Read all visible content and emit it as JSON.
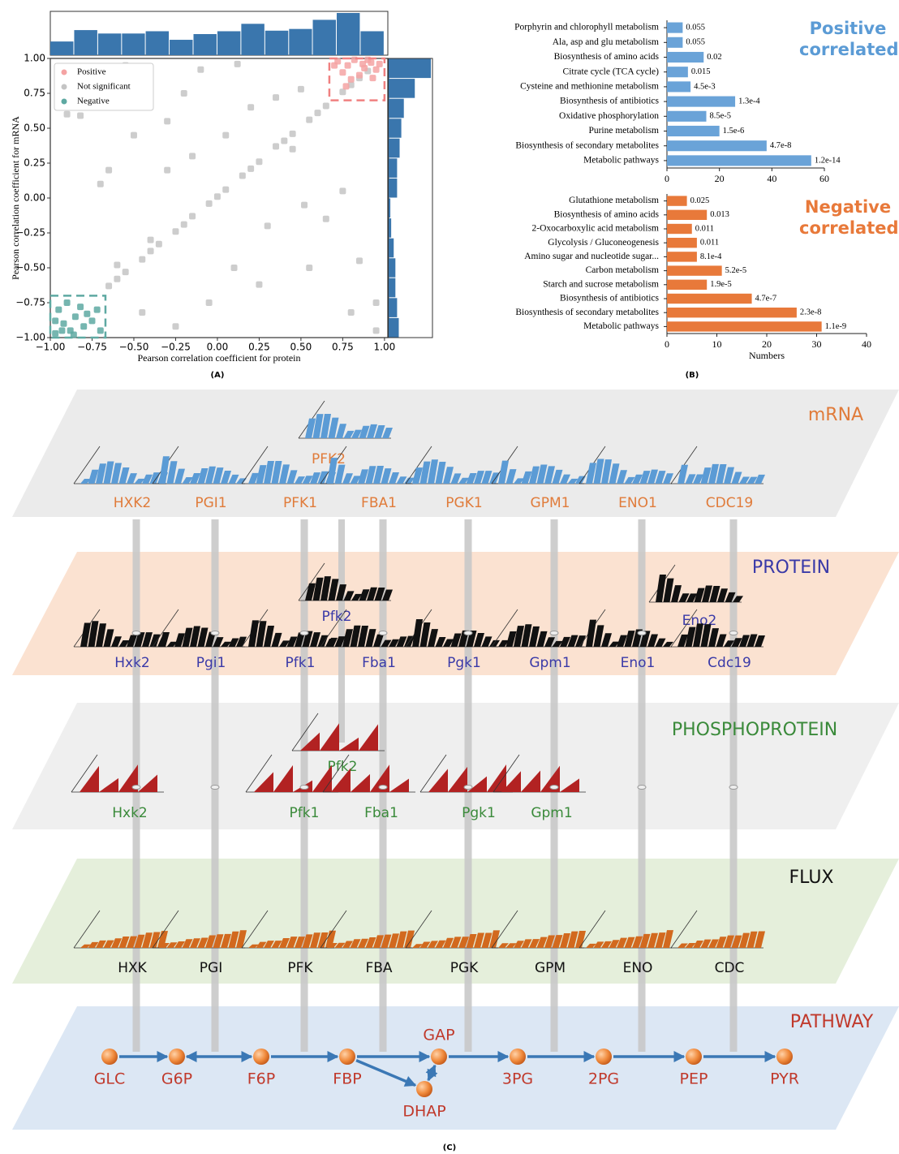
{
  "chart_data": [
    {
      "type": "scatter",
      "xlabel": "Pearson correlation coefficient for protein",
      "ylabel": "Pearson correlation coefficient for mRNA",
      "xlim": [
        -1.0,
        1.02
      ],
      "ylim": [
        -1.0,
        1.0
      ],
      "xticks": [
        {
          "value": -1,
          "label": "−1.00"
        },
        {
          "value": -0.75,
          "label": "−0.75"
        },
        {
          "value": -0.5,
          "label": "−0.50"
        },
        {
          "value": -0.25,
          "label": "−0.25"
        },
        {
          "value": 0,
          "label": "0.00"
        },
        {
          "value": 0.25,
          "label": "0.25"
        },
        {
          "value": 0.5,
          "label": "0.50"
        },
        {
          "value": 0.75,
          "label": "0.75"
        },
        {
          "value": 1,
          "label": "1.00"
        }
      ],
      "yticks": [
        {
          "value": -1,
          "label": "−1.00"
        },
        {
          "value": -0.75,
          "label": "−0.75"
        },
        {
          "value": -0.5,
          "label": "−0.50"
        },
        {
          "value": -0.25,
          "label": "−0.25"
        },
        {
          "value": 0,
          "label": "0.00"
        },
        {
          "value": 0.25,
          "label": "0.25"
        },
        {
          "value": 0.5,
          "label": "0.50"
        },
        {
          "value": 0.75,
          "label": "0.75"
        },
        {
          "value": 1,
          "label": "1.00"
        }
      ],
      "legend": "upper left",
      "series": [
        {
          "name": "Positive",
          "color": "#f4a3a3",
          "x": [
            0.72,
            0.78,
            0.82,
            0.88,
            0.92,
            0.75,
            0.85,
            0.95,
            0.7,
            0.8,
            0.9,
            0.97,
            0.77,
            0.87,
            0.93
          ],
          "y": [
            0.98,
            0.95,
            0.99,
            0.93,
            0.97,
            0.9,
            0.88,
            0.92,
            0.95,
            0.85,
            0.99,
            0.96,
            0.8,
            0.96,
            0.86
          ]
        },
        {
          "name": "Not significant",
          "color": "#c4c4c4",
          "x": [
            -0.65,
            -0.55,
            -0.45,
            -0.35,
            -0.25,
            -0.15,
            -0.05,
            0.05,
            0.15,
            0.25,
            0.35,
            0.45,
            0.55,
            0.65,
            0.75,
            0.85,
            -0.6,
            -0.4,
            -0.2,
            0,
            0.2,
            0.4,
            0.6,
            0.8,
            0.9,
            -0.8,
            -0.9,
            -0.82,
            -0.55,
            -0.45,
            -0.3,
            -0.1,
            0.12,
            0.2,
            0.35,
            0.5,
            -0.65,
            -0.3,
            -0.15,
            0.05,
            -0.7,
            -0.4,
            0.3,
            0.1,
            0.55,
            0.65,
            0.52,
            0.75,
            0.85,
            0.95,
            0.95,
            -0.45,
            -0.25,
            -0.05,
            0.25,
            0.8,
            -0.6,
            -0.2,
            0.45,
            -0.5
          ],
          "y": [
            -0.63,
            -0.53,
            -0.44,
            -0.33,
            -0.24,
            -0.13,
            -0.04,
            0.06,
            0.16,
            0.26,
            0.37,
            0.46,
            0.56,
            0.66,
            0.76,
            0.86,
            -0.58,
            -0.38,
            -0.19,
            0.01,
            0.21,
            0.41,
            0.61,
            0.81,
            0.91,
            0.72,
            0.6,
            0.59,
            0.95,
            0.88,
            0.55,
            0.92,
            0.96,
            0.65,
            0.72,
            0.78,
            0.2,
            0.2,
            0.3,
            0.45,
            0.1,
            -0.3,
            -0.2,
            -0.5,
            -0.5,
            -0.15,
            -0.05,
            0.05,
            -0.45,
            -0.75,
            -0.95,
            -0.82,
            -0.92,
            -0.75,
            -0.62,
            -0.82,
            -0.48,
            0.75,
            0.35,
            0.45
          ]
        },
        {
          "name": "Negative",
          "color": "#5ea9a2",
          "x": [
            -0.97,
            -0.92,
            -0.88,
            -0.85,
            -0.8,
            -0.95,
            -0.75,
            -0.9,
            -0.82,
            -0.7,
            -0.97,
            -0.86,
            -0.78,
            -0.93,
            -0.72
          ],
          "y": [
            -0.97,
            -0.9,
            -0.95,
            -0.85,
            -0.92,
            -0.8,
            -0.88,
            -0.75,
            -0.78,
            -0.95,
            -0.88,
            -0.98,
            -0.83,
            -0.95,
            -0.8
          ]
        }
      ],
      "regions": [
        {
          "x": [
            0.67,
            1.0
          ],
          "y": [
            0.7,
            1.0
          ],
          "color": "#f08080"
        },
        {
          "x": [
            -1.0,
            -0.67
          ],
          "y": [
            -1.0,
            -0.7
          ],
          "color": "#5ea9a2"
        }
      ],
      "x_hist": {
        "bins": [
          -1,
          -0.857,
          -0.714,
          -0.571,
          -0.429,
          -0.286,
          -0.143,
          0,
          0.143,
          0.286,
          0.429,
          0.571,
          0.714,
          0.857,
          1
        ],
        "counts": [
          24,
          44,
          38,
          38,
          42,
          27,
          37,
          42,
          55,
          43,
          46,
          62,
          74,
          42
        ],
        "color": "#3a76ad"
      },
      "y_hist": {
        "bins": [
          -1,
          -0.857,
          -0.714,
          -0.571,
          -0.429,
          -0.286,
          -0.143,
          0,
          0.143,
          0.286,
          0.429,
          0.571,
          0.714,
          0.857,
          1
        ],
        "counts": [
          12,
          10,
          8,
          8,
          6,
          3,
          2,
          10,
          10,
          13,
          15,
          18,
          31,
          50
        ],
        "color": "#3a76ad"
      },
      "panel_label": "(A)"
    },
    {
      "type": "barh",
      "title": "Positive correlated",
      "title_color": "#5b9bd5",
      "color": "#6aa3d8",
      "categories": [
        "Porphyrin and chlorophyll metabolism",
        "Ala, asp and glu metabolism",
        "Biosynthesis of amino acids",
        "Citrate cycle (TCA cycle)",
        "Cysteine and methionine metabolism",
        "Biosynthesis of antibiotics",
        "Oxidative phosphorylation",
        "Purine metabolism",
        "Biosynthesis of secondary metabolites",
        "Metabolic pathways"
      ],
      "values": [
        6,
        6,
        14,
        8,
        9,
        26,
        15,
        20,
        38,
        55
      ],
      "p_values": [
        "0.055",
        "0.055",
        "0.02",
        "0.015",
        "4.5e-3",
        "1.3e-4",
        "8.5e-5",
        "1.5e-6",
        "4.7e-8",
        "1.2e-14"
      ],
      "xlim": [
        0,
        60
      ],
      "xticks": [
        0,
        20,
        40,
        60
      ]
    },
    {
      "type": "barh",
      "title": "Negative correlated",
      "title_color": "#e8793a",
      "color": "#e8793a",
      "categories": [
        "Glutathione metabolism",
        "Biosynthesis of amino acids",
        "2-Oxocarboxylic acid metabolism",
        "Glycolysis / Gluconeogenesis",
        "Amino sugar and nucleotide sugar...",
        "Carbon metabolism",
        "Starch and sucrose metabolism",
        "Biosynthesis of antibiotics",
        "Biosynthesis of secondary metabolites",
        "Metabolic pathways"
      ],
      "values": [
        4,
        8,
        5,
        6,
        6,
        11,
        8,
        17,
        26,
        31
      ],
      "p_values": [
        "0.025",
        "0.013",
        "0.011",
        "0.011",
        "8.1e-4",
        "5.2e-5",
        "1.9e-5",
        "4.7e-7",
        "2.3e-8",
        "1.1e-9"
      ],
      "xlim": [
        0,
        40
      ],
      "xticks": [
        0,
        10,
        20,
        30,
        40
      ],
      "xlabel": "Numbers",
      "panel_label": "(B)"
    }
  ],
  "diagram": {
    "panel_label": "(C)",
    "layers": [
      {
        "name": "mRNA",
        "color": "#e07b3a",
        "fill": "#ebebeb",
        "bar_color": "#5b9bd5",
        "genes": [
          "HXK2",
          "PGI1",
          "PFK1",
          "FBA1",
          "PGK1",
          "GPM1",
          "ENO1",
          "CDC19"
        ],
        "extra_genes": [
          "PFK2"
        ]
      },
      {
        "name": "PROTEIN",
        "color": "#3a3aa8",
        "fill": "#fbe2d1",
        "bar_color": "#111111",
        "genes": [
          "Hxk2",
          "Pgi1",
          "Pfk1",
          "Fba1",
          "Pgk1",
          "Gpm1",
          "Eno1",
          "Cdc19"
        ],
        "extra_genes": [
          "Pfk2",
          "Eno2"
        ]
      },
      {
        "name": "PHOSPHOPROTEIN",
        "color": "#3a8a3a",
        "fill": "#efefef",
        "bar_color": "#b22222",
        "genes": [
          "Hxk2",
          "Pfk1",
          "Fba1",
          "Pgk1",
          "Gpm1"
        ],
        "extra_genes": [
          "Pfk2"
        ]
      },
      {
        "name": "FLUX",
        "color": "#111111",
        "fill": "#e5efdb",
        "bar_color": "#d2691e",
        "genes": [
          "HXK",
          "PGI",
          "PFK",
          "FBA",
          "PGK",
          "GPM",
          "ENO",
          "CDC"
        ],
        "extra_genes": []
      }
    ],
    "pathway": {
      "name": "PATHWAY",
      "color": "#c0392b",
      "fill": "#dce7f4",
      "nodes": [
        "GLC",
        "G6P",
        "F6P",
        "FBP",
        "GAP",
        "DHAP",
        "3PG",
        "2PG",
        "PEP",
        "PYR"
      ]
    }
  }
}
